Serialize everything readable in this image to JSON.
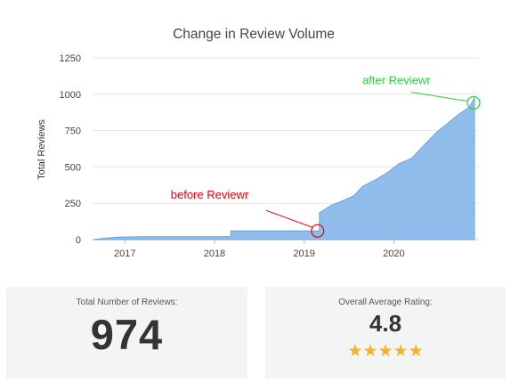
{
  "chart_data": {
    "type": "area",
    "title": "Change in Review Volume",
    "ylabel": "Total Reviews",
    "xlabel": "",
    "ylim": [
      0,
      1250
    ],
    "xlim": [
      2016.64,
      2020.95
    ],
    "yticks": [
      0,
      250,
      500,
      750,
      1000,
      1250
    ],
    "xticks": [
      "2017",
      "2018",
      "2019",
      "2020"
    ],
    "grid": "horizontal",
    "fill_color": "#90bdec",
    "line_color": "#5b9bd5",
    "series": [
      {
        "x": [
          2016.64,
          2016.78,
          2016.92,
          2017.2,
          2018.0,
          2018.18,
          2018.18,
          2019.0,
          2019.17,
          2019.17,
          2019.3,
          2019.42,
          2019.55,
          2019.65,
          2019.82,
          2019.95,
          2020.05,
          2020.2,
          2020.32,
          2020.48,
          2020.6,
          2020.72,
          2020.84,
          2020.9
        ],
        "y": [
          0,
          10,
          18,
          20,
          20,
          20,
          60,
          60,
          60,
          185,
          235,
          265,
          300,
          365,
          420,
          470,
          520,
          560,
          640,
          740,
          800,
          860,
          910,
          974
        ]
      }
    ],
    "annotations": [
      {
        "text": "before Reviewr",
        "x": 2019.17,
        "y": 60,
        "color": "#e8000b"
      },
      {
        "text": "after Reviewr",
        "x": 2020.89,
        "y": 965,
        "color": "#2ecc40"
      }
    ]
  },
  "cards": {
    "total": {
      "label": "Total Number of Reviews:",
      "value": "974"
    },
    "rating": {
      "label": "Overall Average Rating:",
      "value": "4.8",
      "stars": 5,
      "star_color": "#f5b32b"
    }
  }
}
